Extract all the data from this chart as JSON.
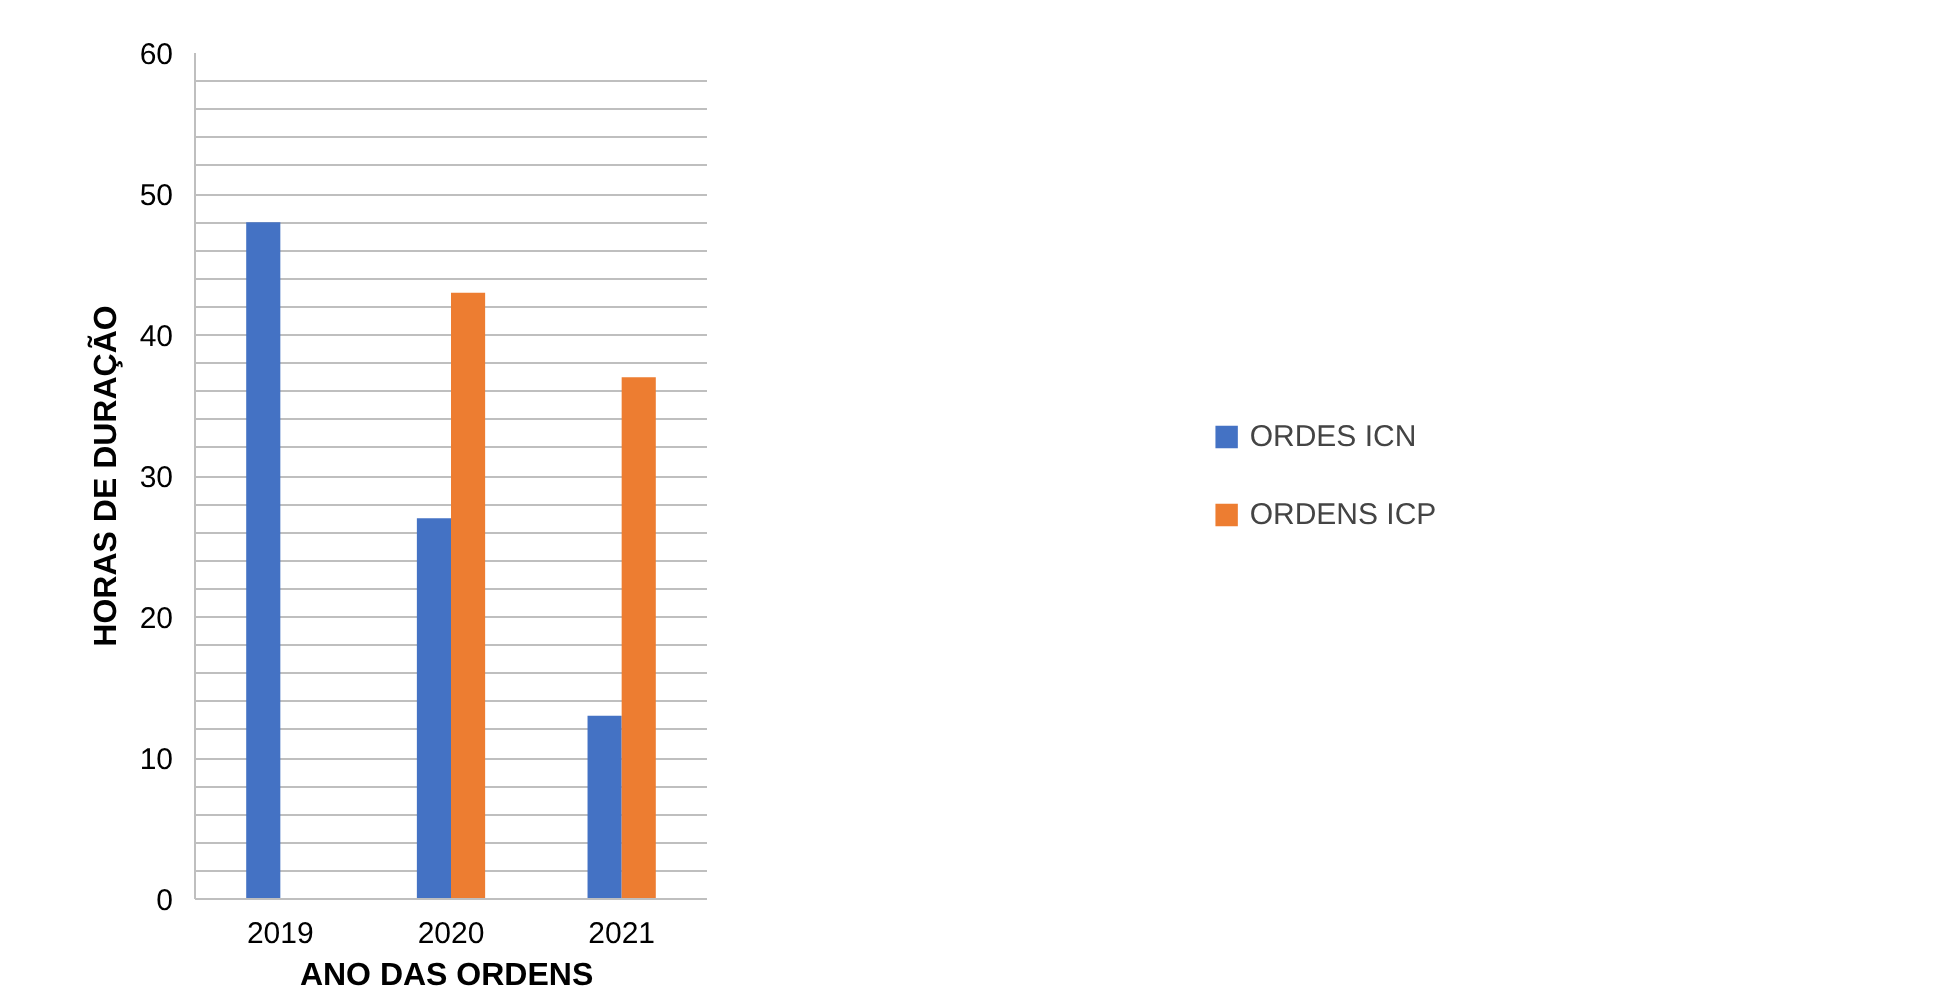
{
  "chart_data": {
    "type": "bar",
    "xlabel": "ANO DAS  ORDENS",
    "ylabel": "HORAS DE DURAÇÃO",
    "categories": [
      "2019",
      "2020",
      "2021"
    ],
    "series": [
      {
        "name": "ORDES ICN",
        "color": "#4472c4",
        "values": [
          48,
          27,
          13
        ]
      },
      {
        "name": "ORDENS ICP",
        "color": "#ed7d31",
        "values": [
          null,
          43,
          37
        ]
      }
    ],
    "ylim": [
      0,
      60
    ],
    "yticks": [
      0,
      {
        "value": 2,
        "label": null
      },
      {
        "value": 4,
        "label": null
      },
      {
        "value": 6,
        "label": null
      },
      {
        "value": 8,
        "label": null
      },
      10,
      {
        "value": 12,
        "label": null
      },
      {
        "value": 14,
        "label": null
      },
      {
        "value": 16,
        "label": null
      },
      {
        "value": 18,
        "label": null
      },
      20,
      {
        "value": 22,
        "label": null
      },
      {
        "value": 24,
        "label": null
      },
      {
        "value": 26,
        "label": null
      },
      {
        "value": 28,
        "label": null
      },
      30,
      {
        "value": 32,
        "label": null
      },
      {
        "value": 34,
        "label": null
      },
      {
        "value": 36,
        "label": null
      },
      {
        "value": 38,
        "label": null
      },
      40,
      {
        "value": 42,
        "label": null
      },
      {
        "value": 44,
        "label": null
      },
      {
        "value": 46,
        "label": null
      },
      {
        "value": 48,
        "label": null
      },
      50,
      {
        "value": 52,
        "label": null
      },
      {
        "value": 54,
        "label": null
      },
      {
        "value": 56,
        "label": null
      },
      {
        "value": 58,
        "label": null
      },
      60
    ],
    "grid": "y",
    "legend": "right"
  }
}
